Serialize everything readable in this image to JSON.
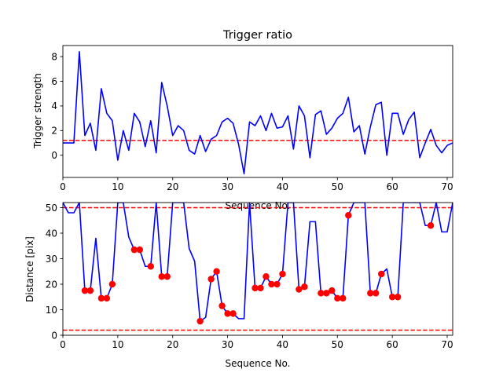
{
  "chart_data": [
    {
      "type": "line",
      "title": "Trigger ratio",
      "xlabel": "Sequence No.",
      "ylabel": "Trigger strength",
      "xlim": [
        0,
        71
      ],
      "ylim": [
        -1.8,
        8.9
      ],
      "xticks": [
        0,
        10,
        20,
        30,
        40,
        50,
        60,
        70
      ],
      "yticks": [
        0,
        2,
        4,
        6,
        8
      ],
      "series": [
        {
          "color": "#0000ff",
          "style": "solid",
          "x": [
            0,
            1,
            2,
            3,
            4,
            5,
            6,
            7,
            8,
            9,
            10,
            11,
            12,
            13,
            14,
            15,
            16,
            17,
            18,
            19,
            20,
            21,
            22,
            23,
            24,
            25,
            26,
            27,
            28,
            29,
            30,
            31,
            32,
            33,
            34,
            35,
            36,
            37,
            38,
            39,
            40,
            41,
            42,
            43,
            44,
            45,
            46,
            47,
            48,
            49,
            50,
            51,
            52,
            53,
            54,
            55,
            56,
            57,
            58,
            59,
            60,
            61,
            62,
            63,
            64,
            65,
            66,
            67,
            68,
            69,
            70,
            71
          ],
          "y": [
            1.0,
            1.0,
            1.0,
            8.4,
            1.6,
            2.6,
            0.4,
            5.4,
            3.4,
            2.8,
            -0.4,
            2.0,
            0.4,
            3.4,
            2.7,
            0.7,
            2.8,
            0.2,
            5.9,
            4.0,
            1.6,
            2.4,
            2.0,
            0.4,
            0.1,
            1.6,
            0.3,
            1.3,
            1.6,
            2.7,
            3.0,
            2.6,
            0.9,
            -1.5,
            2.7,
            2.4,
            3.2,
            2.0,
            3.4,
            2.2,
            2.3,
            3.2,
            0.5,
            4.0,
            3.2,
            -0.2,
            3.3,
            3.6,
            1.7,
            2.2,
            3.0,
            3.4,
            4.7,
            1.9,
            2.4,
            0.1,
            2.3,
            4.1,
            4.3,
            0.0,
            3.4,
            3.4,
            1.7,
            2.9,
            3.5,
            -0.2,
            1.0,
            2.1,
            0.8,
            0.2,
            0.8,
            1.0
          ]
        }
      ],
      "hlines": [
        {
          "y": 1.2,
          "color": "#ff0000",
          "style": "dashed"
        }
      ]
    },
    {
      "type": "line",
      "xlabel": "Sequence No.",
      "ylabel": "Distance [pix]",
      "xlim": [
        0,
        71
      ],
      "ylim": [
        0,
        52
      ],
      "xticks": [
        0,
        10,
        20,
        30,
        40,
        50,
        60,
        70
      ],
      "yticks": [
        0,
        10,
        20,
        30,
        40,
        50
      ],
      "series": [
        {
          "color": "#0000ff",
          "style": "solid",
          "x": [
            0,
            1,
            2,
            3,
            4,
            5,
            6,
            7,
            8,
            9,
            10,
            11,
            12,
            13,
            14,
            15,
            16,
            17,
            18,
            19,
            20,
            21,
            22,
            23,
            24,
            25,
            26,
            27,
            28,
            29,
            30,
            31,
            32,
            33,
            34,
            35,
            36,
            37,
            38,
            39,
            40,
            41,
            42,
            43,
            44,
            45,
            46,
            47,
            48,
            49,
            50,
            51,
            52,
            53,
            54,
            55,
            56,
            57,
            58,
            59,
            60,
            61,
            62,
            63,
            64,
            65,
            66,
            67,
            68,
            69,
            70,
            71
          ],
          "y": [
            52,
            48,
            48,
            52,
            17.5,
            17.5,
            38,
            14.5,
            14.5,
            20,
            52,
            52,
            38.5,
            33.5,
            33.5,
            27,
            27,
            52,
            23,
            23,
            52,
            52,
            52,
            34,
            29,
            5.5,
            7,
            22,
            25,
            11.5,
            8.5,
            8.5,
            6.5,
            6.5,
            52,
            18.5,
            18.5,
            23,
            20,
            20,
            24,
            52,
            52,
            18,
            19,
            44.5,
            44.5,
            16.5,
            16.5,
            17.5,
            14.5,
            14.5,
            47,
            52,
            52,
            52,
            16.5,
            16.5,
            24,
            26,
            15,
            15,
            52,
            52,
            52,
            52,
            43,
            43,
            52,
            40.5,
            40.5,
            52
          ]
        },
        {
          "type": "scatter",
          "marker": "circle",
          "color": "#ff0000",
          "x": [
            4,
            5,
            7,
            8,
            9,
            13,
            14,
            16,
            18,
            19,
            25,
            27,
            28,
            29,
            30,
            31,
            35,
            36,
            37,
            38,
            39,
            40,
            43,
            44,
            47,
            48,
            49,
            50,
            51,
            52,
            56,
            57,
            58,
            60,
            61,
            67
          ],
          "y": [
            17.5,
            17.5,
            14.5,
            14.5,
            20,
            33.5,
            33.5,
            27,
            23,
            23,
            5.5,
            22,
            25,
            11.5,
            8.5,
            8.5,
            18.5,
            18.5,
            23,
            20,
            20,
            24,
            18,
            19,
            16.5,
            16.5,
            17.5,
            14.5,
            14.5,
            47,
            16.5,
            16.5,
            24,
            15,
            15,
            43
          ]
        }
      ],
      "hlines": [
        {
          "y": 50,
          "color": "#ff0000",
          "style": "dashed"
        },
        {
          "y": 2,
          "color": "#ff0000",
          "style": "dashed"
        }
      ]
    }
  ]
}
